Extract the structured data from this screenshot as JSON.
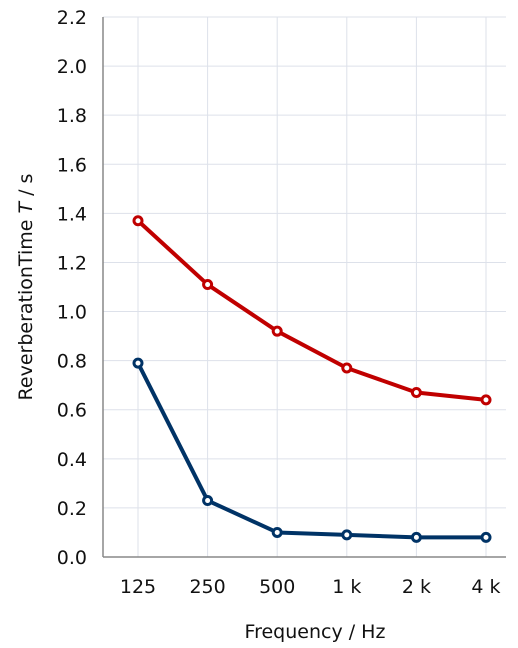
{
  "chart_data": {
    "type": "line",
    "categories": [
      "125",
      "250",
      "500",
      "1 k",
      "2 k",
      "4 k"
    ],
    "series": [
      {
        "values": [
          1.37,
          1.11,
          0.92,
          0.77,
          0.67,
          0.64
        ],
        "color": "#c00000"
      },
      {
        "values": [
          0.79,
          0.23,
          0.1,
          0.09,
          0.08,
          0.08
        ],
        "color": "#003366"
      }
    ],
    "xlabel": "Frequency / Hz",
    "ylabel_prefix": "ReverberationTime ",
    "ylabel_symbol": "T",
    "ylabel_suffix": " / s",
    "ylim": [
      0,
      2.2
    ],
    "yticks": [
      "0.0",
      "0.2",
      "0.4",
      "0.6",
      "0.8",
      "1.0",
      "1.2",
      "1.4",
      "1.6",
      "1.8",
      "2.0",
      "2.2"
    ],
    "grid": true
  }
}
